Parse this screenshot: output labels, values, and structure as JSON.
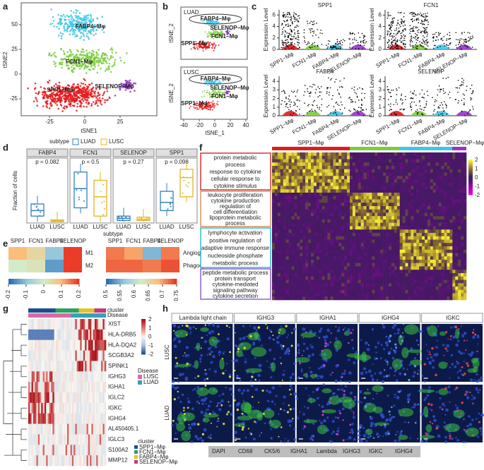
{
  "panels": {
    "a": {
      "letter": "a",
      "xlabel": "tSNE1",
      "ylabel": "tSNE2",
      "xticks": [
        -25,
        0,
        25
      ],
      "yticks": [
        50,
        25,
        0,
        -25
      ],
      "clusters": [
        "FABP4−Mφ",
        "FCN1−Mφ",
        "SPP1−Mφ",
        "SELENOP−Mφ"
      ]
    },
    "b": {
      "letter": "b",
      "titles": [
        "LUAD",
        "LUSC"
      ],
      "xlabel": "tSNE_1",
      "ylabel": "tSNE_2",
      "xticks": [
        -40,
        -20,
        0,
        20,
        40
      ],
      "labels": [
        "FABP4−Mφ",
        "SELENOP−Mφ",
        "FCN1−Mφ",
        "SPP1−Mφ"
      ]
    },
    "c": {
      "letter": "c",
      "ylabel": "Expression Level",
      "genes": [
        {
          "name": "SPP1",
          "yticks": [
            0,
            2,
            4,
            6
          ]
        },
        {
          "name": "FCN1",
          "yticks": [
            0,
            2,
            4,
            6
          ]
        },
        {
          "name": "FABP4",
          "yticks": [
            0,
            1,
            2,
            3,
            4
          ]
        },
        {
          "name": "SELENOP",
          "yticks": [
            0,
            1,
            2,
            3,
            4
          ]
        }
      ],
      "categories": [
        "SPP1−Mφ",
        "FCN1−Mφ",
        "FABP4−Mφ",
        "SELENOP−Mφ"
      ]
    },
    "d": {
      "letter": "d",
      "legend_title": "subtype",
      "legend": [
        "LUAD",
        "LUSC"
      ],
      "facets": [
        "FABP4",
        "FCN1",
        "SELENOP",
        "SPP1"
      ],
      "pvalues": [
        "p = 0.082",
        "p = 0.5",
        "p = 0.27",
        "p = 0.098"
      ],
      "ylabel": "Fraction of cells",
      "xlabel": "subtype"
    },
    "e": {
      "letter": "e",
      "left": {
        "columns": [
          "SPP1",
          "FCN1",
          "FABP4",
          "SELENOP"
        ],
        "rows": [
          "M1",
          "M2"
        ],
        "values": [
          [
            0.1,
            0.05,
            -0.1,
            0.2
          ],
          [
            0.0,
            0.02,
            -0.15,
            0.2
          ]
        ],
        "colorbar": [
          -0.2,
          -0.1,
          0,
          0.1,
          0.2
        ]
      },
      "right": {
        "columns": [
          "SPP1",
          "FCN1",
          "FABP4",
          "SELENOP"
        ],
        "rows": [
          "Angiogenesis",
          "Phagocytosis"
        ],
        "values": [
          [
            0.72,
            0.7,
            0.55,
            0.72
          ],
          [
            0.73,
            0.73,
            0.72,
            0.74
          ]
        ],
        "colorbar": [
          0.5,
          0.55,
          0.6,
          0.65,
          0.7,
          0.75
        ]
      }
    },
    "f": {
      "letter": "f",
      "clusters": [
        "SPP1−Mφ",
        "FCN1−Mφ",
        "FABP4−Mφ",
        "SELENOP−Mφ"
      ],
      "terms": [
        [
          "protein metabolic",
          "process",
          "response to cytokine",
          "cellular response to",
          "cytokine stimulus"
        ],
        [
          "leukocyte proliferation",
          "cytokine production",
          "regulation of",
          "cell differentiation",
          "lipoprotein metabolic",
          "process"
        ],
        [
          "lymphocyte activation",
          "positive regulation of",
          "adaptive immune response",
          "nucleoside phosphate",
          "metabolic process"
        ],
        [
          "peptide metabolic process",
          "protein transport",
          "cytokine-mediated",
          "signaling pathway",
          "cytokine secretion"
        ]
      ],
      "colorbar": [
        2,
        1,
        0,
        -1,
        -2
      ]
    },
    "g": {
      "letter": "g",
      "bars": [
        "cluster",
        "Disease"
      ],
      "genes": [
        "XIST",
        "HLA-DRB5",
        "HLA-DQA2",
        "SCGB3A2",
        "SPINK1",
        "IGHG3",
        "IGHA1",
        "IGLC2",
        "IGKC",
        "IGHG4",
        "AL450405.1",
        "IGLC3",
        "S100A2",
        "MMP12"
      ],
      "colorbar": [
        2,
        1,
        0,
        -1,
        -2
      ],
      "disease_title": "Disease",
      "disease": [
        "LUSC",
        "LUAD"
      ],
      "cluster_title": "cluster",
      "clusters": [
        "SPP1−Mφ",
        "FCN1−Mφ",
        "FABP4−Mφ",
        "SELENOP−Mφ"
      ]
    },
    "h": {
      "letter": "h",
      "columns": [
        "Lambda light chain",
        "IGHG3",
        "IGHA1",
        "IGHG4",
        "IGKC"
      ],
      "rows": [
        "LUSC",
        "LUAD"
      ],
      "legend": [
        "DAPI",
        "CD68",
        "CK5/6",
        "IGHA1",
        "Lambda",
        "IGHG3",
        "IGKC",
        "IGHG4"
      ]
    }
  }
}
